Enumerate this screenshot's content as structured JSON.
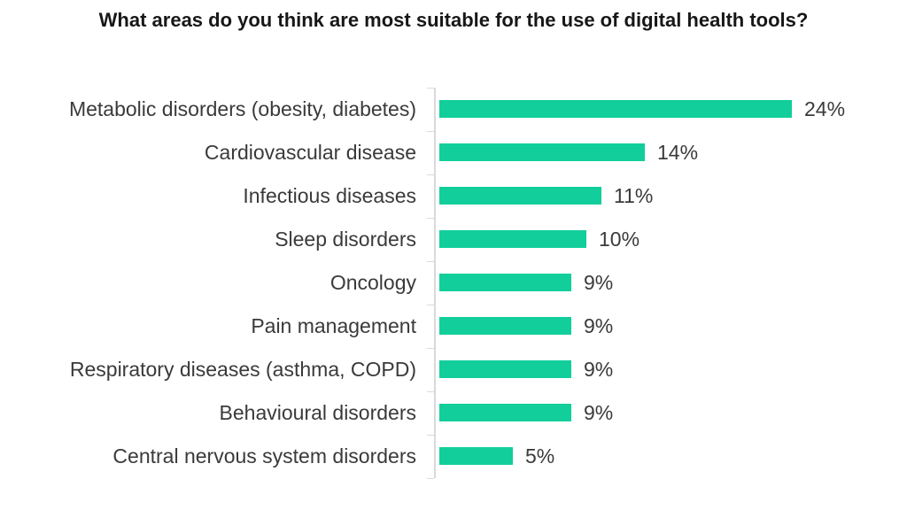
{
  "chart_data": {
    "type": "bar",
    "orientation": "horizontal",
    "title": "What areas do you think are most suitable for the use of digital health tools?",
    "categories": [
      "Metabolic disorders (obesity, diabetes)",
      "Cardiovascular disease",
      "Infectious diseases",
      "Sleep disorders",
      "Oncology",
      "Pain management",
      "Respiratory diseases (asthma, COPD)",
      "Behavioural disorders",
      "Central nervous system disorders"
    ],
    "values": [
      24,
      14,
      11,
      10,
      9,
      9,
      9,
      9,
      5
    ],
    "value_labels": [
      "24%",
      "14%",
      "11%",
      "10%",
      "9%",
      "9%",
      "9%",
      "9%",
      "5%"
    ],
    "xlabel": "",
    "ylabel": "",
    "xlim": [
      0,
      25
    ],
    "grid": false,
    "legend": false,
    "colors": {
      "bar": "#12ce9b",
      "axis": "#d9d9d9",
      "label_text": "#3a3a3a",
      "title_text": "#171717"
    }
  }
}
